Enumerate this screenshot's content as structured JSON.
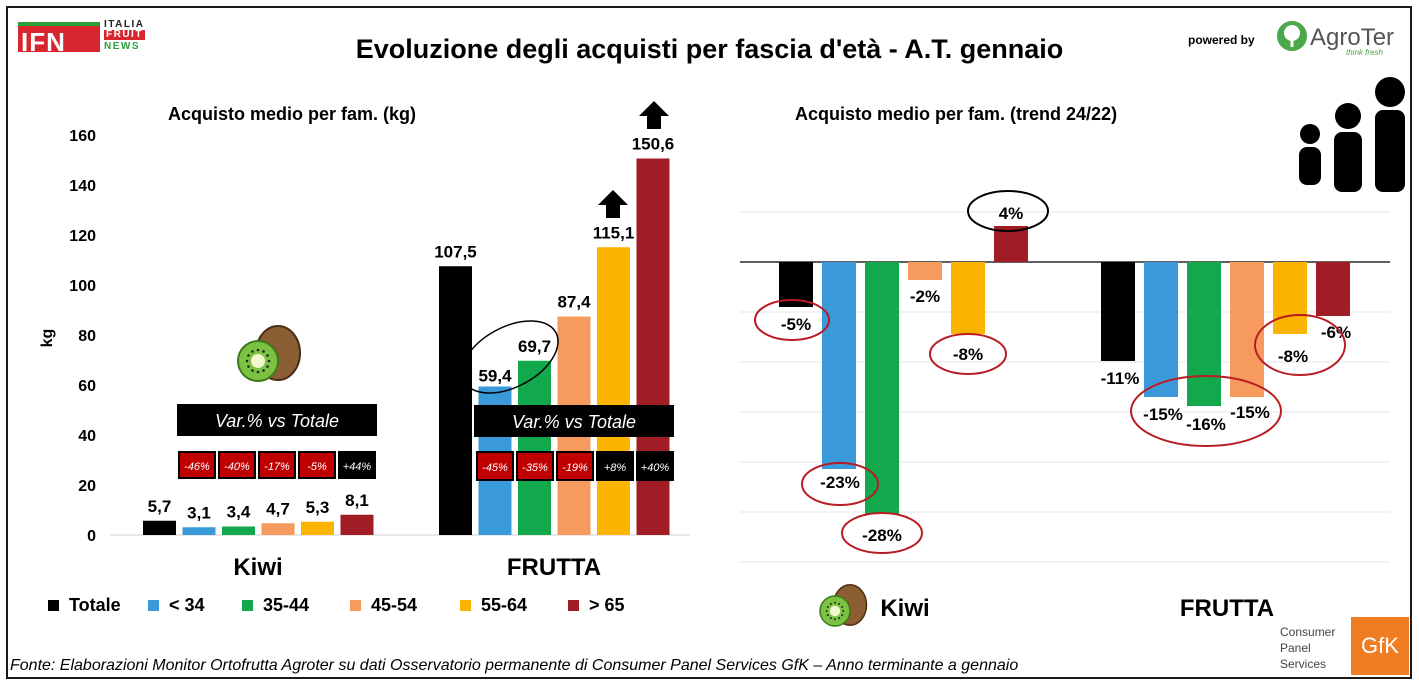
{
  "header": {
    "title": "Evoluzione degli acquisti per fascia d'età - A.T. gennaio",
    "logo_ifn": {
      "letters": "IFN",
      "line1": "ITALIA",
      "line2": "FRUIT",
      "line3": "NEWS"
    },
    "powered_by": "powered by",
    "agroter": {
      "name": "AgroTer",
      "tagline": "think fresh"
    }
  },
  "footer": {
    "source": "Fonte: Elaborazioni Monitor Ortofrutta Agroter su dati Osservatorio permanente di Consumer Panel Services GfK – Anno terminante a gennaio",
    "gfk_label": "Consumer Panel Services",
    "gfk_logo": "GfK"
  },
  "legend": [
    {
      "label": "Totale",
      "color": "#000000"
    },
    {
      "label": "< 34",
      "color": "#3a9ad9"
    },
    {
      "label": "35-44",
      "color": "#12a84c"
    },
    {
      "label": "45-54",
      "color": "#f79a5e"
    },
    {
      "label": "55-64",
      "color": "#fbb400"
    },
    {
      "label": "> 65",
      "color": "#a01d26"
    }
  ],
  "chart_data": [
    {
      "type": "bar",
      "title": "Acquisto medio per fam. (kg)",
      "ylabel": "kg",
      "ylim": [
        0,
        160
      ],
      "yticks": [
        "0",
        "20",
        "40",
        "60",
        "80",
        "100",
        "120",
        "140",
        "160"
      ],
      "categories": [
        "Kiwi",
        "FRUTTA"
      ],
      "series": [
        {
          "name": "Totale",
          "values": [
            5.7,
            107.5
          ],
          "labels": [
            "5,7",
            "107,5"
          ]
        },
        {
          "name": "< 34",
          "values": [
            3.1,
            59.4
          ],
          "labels": [
            "3,1",
            "59,4"
          ]
        },
        {
          "name": "35-44",
          "values": [
            3.4,
            69.7
          ],
          "labels": [
            "3,4",
            "69,7"
          ]
        },
        {
          "name": "45-54",
          "values": [
            4.7,
            87.4
          ],
          "labels": [
            "4,7",
            "87,4"
          ]
        },
        {
          "name": "55-64",
          "values": [
            5.3,
            115.1
          ],
          "labels": [
            "5,3",
            "115,1"
          ]
        },
        {
          "name": "> 65",
          "values": [
            8.1,
            150.6
          ],
          "labels": [
            "8,1",
            "150,6"
          ]
        }
      ],
      "annotation_box": "Var.% vs Totale",
      "var_vs_totale": {
        "Kiwi": [
          "-46%",
          "-40%",
          "-17%",
          "-5%",
          "+44%"
        ],
        "FRUTTA": [
          "-45%",
          "-35%",
          "-19%",
          "+8%",
          "+40%"
        ]
      },
      "up_arrows_on": [
        "55-64 FRUTTA",
        "> 65 FRUTTA"
      ],
      "grid": false
    },
    {
      "type": "bar",
      "title": "Acquisto medio per fam. (trend 24/22)",
      "categories": [
        "Kiwi",
        "FRUTTA"
      ],
      "series": [
        {
          "name": "Totale",
          "values": [
            -5,
            -11
          ],
          "labels": [
            "-5%",
            "-11%"
          ]
        },
        {
          "name": "< 34",
          "values": [
            -23,
            -15
          ],
          "labels": [
            "-23%",
            "-15%"
          ]
        },
        {
          "name": "35-44",
          "values": [
            -28,
            -16
          ],
          "labels": [
            "-28%",
            "-16%"
          ]
        },
        {
          "name": "45-54",
          "values": [
            -2,
            -15
          ],
          "labels": [
            "-2%",
            "-15%"
          ]
        },
        {
          "name": "55-64",
          "values": [
            -8,
            -8
          ],
          "labels": [
            "-8%",
            "-8%"
          ]
        },
        {
          "name": "> 65",
          "values": [
            4,
            -6
          ],
          "labels": [
            "4%",
            "-6%"
          ]
        }
      ],
      "grid": true
    }
  ]
}
